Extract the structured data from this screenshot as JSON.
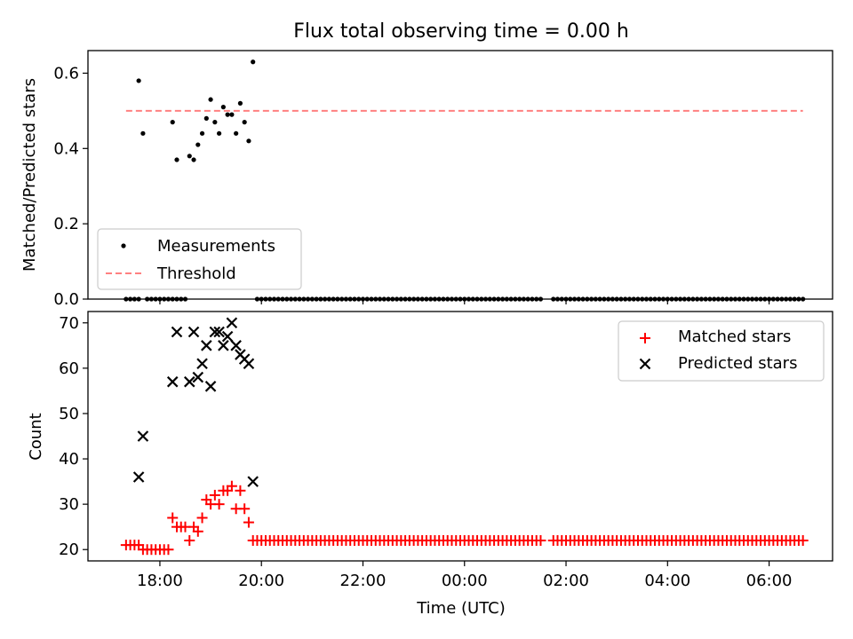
{
  "title": "Flux total observing time = 0.00 h",
  "colors": {
    "matched": "#ff0000",
    "predicted": "#000000",
    "measurement": "#000000",
    "threshold": "#ff8080"
  },
  "chart_data": [
    {
      "type": "scatter",
      "ylabel": "Matched/Predicted stars",
      "ylim": [
        0,
        0.66
      ],
      "yticks": [
        0.0,
        0.2,
        0.4,
        0.6
      ],
      "ytick_labels": [
        "0.0",
        "0.2",
        "0.4",
        "0.6"
      ],
      "grid": false,
      "legend": "lower-left",
      "threshold": {
        "name": "Threshold",
        "value": 0.5,
        "x_start": "17:20",
        "x_end": "06:40",
        "style": "dashed"
      },
      "series": [
        {
          "name": "Measurements",
          "x": [
            "17:35",
            "17:40",
            "18:15",
            "18:20",
            "18:35",
            "18:40",
            "18:45",
            "18:50",
            "18:55",
            "19:00",
            "19:05",
            "19:10",
            "19:15",
            "19:20",
            "19:25",
            "19:30",
            "19:35",
            "19:40",
            "19:45",
            "19:50"
          ],
          "y": [
            0.58,
            0.44,
            0.47,
            0.37,
            0.38,
            0.37,
            0.41,
            0.44,
            0.48,
            0.53,
            0.47,
            0.44,
            0.51,
            0.49,
            0.49,
            0.44,
            0.52,
            0.47,
            0.42,
            0.63
          ]
        }
      ],
      "zero_markers": [
        {
          "from": "17:20",
          "to": "17:35",
          "step_min": 5
        },
        {
          "from": "17:45",
          "to": "18:10",
          "step_min": 5
        },
        {
          "from": "18:15",
          "to": "18:30",
          "step_min": 5
        },
        {
          "from": "19:55",
          "to": "01:30",
          "step_min": 5
        },
        {
          "from": "01:45",
          "to": "06:40",
          "step_min": 5
        }
      ]
    },
    {
      "type": "scatter",
      "xlabel": "Time (UTC)",
      "ylabel": "Count",
      "ylim": [
        17.5,
        72.5
      ],
      "yticks": [
        20,
        30,
        40,
        50,
        60,
        70
      ],
      "ytick_labels": [
        "20",
        "30",
        "40",
        "50",
        "60",
        "70"
      ],
      "xticks": [
        "18:00",
        "20:00",
        "22:00",
        "00:00",
        "02:00",
        "04:00",
        "06:00"
      ],
      "x_range": [
        "16:35",
        "07:15"
      ],
      "grid": false,
      "legend": "top-right",
      "series": [
        {
          "name": "Matched stars",
          "marker": "plus",
          "x": [
            "17:20",
            "17:25",
            "17:30",
            "17:35",
            "17:40",
            "17:45",
            "17:50",
            "17:55",
            "18:00",
            "18:05",
            "18:10",
            "18:15",
            "18:20",
            "18:25",
            "18:30",
            "18:35",
            "18:40",
            "18:45",
            "18:50",
            "18:55",
            "19:00",
            "19:05",
            "19:10",
            "19:15",
            "19:20",
            "19:25",
            "19:30",
            "19:35",
            "19:40",
            "19:45",
            "19:50"
          ],
          "y": [
            21,
            21,
            21,
            21,
            20,
            20,
            20,
            20,
            20,
            20,
            20,
            27,
            25,
            25,
            25,
            22,
            25,
            24,
            27,
            31,
            30,
            32,
            30,
            33,
            33,
            34,
            29,
            33,
            29,
            26,
            22
          ],
          "tail": {
            "from": "19:55",
            "to": "06:40",
            "step_min": 5,
            "value": 22,
            "gaps": [
              [
                "01:35",
                "01:40"
              ]
            ]
          }
        },
        {
          "name": "Predicted stars",
          "marker": "x",
          "x": [
            "17:35",
            "17:40",
            "18:15",
            "18:20",
            "18:35",
            "18:40",
            "18:45",
            "18:50",
            "18:55",
            "19:00",
            "19:05",
            "19:10",
            "19:15",
            "19:20",
            "19:25",
            "19:30",
            "19:35",
            "19:40",
            "19:45",
            "19:50"
          ],
          "y": [
            36,
            45,
            57,
            68,
            57,
            68,
            58,
            61,
            65,
            56,
            68,
            68,
            65,
            67,
            70,
            65,
            63,
            62,
            61,
            35
          ]
        }
      ]
    }
  ]
}
